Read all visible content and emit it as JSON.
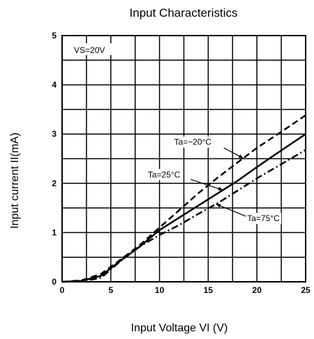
{
  "chart_data": {
    "type": "line",
    "title": "Input Characteristics",
    "xlabel": "Input Voltage    VI (V)",
    "ylabel": "Input current    II(mA)",
    "xlim": [
      0,
      25
    ],
    "ylim": [
      0,
      5
    ],
    "xticks": [
      "0",
      "5",
      "10",
      "15",
      "20",
      "25"
    ],
    "yticks": [
      "0",
      "1",
      "2",
      "3",
      "4",
      "5"
    ],
    "grid": true,
    "condition": "VS=20V",
    "series": [
      {
        "name": "Ta=−20°C",
        "style": "dashed",
        "x": [
          0,
          2,
          4,
          6,
          8,
          10,
          12,
          14,
          16,
          18,
          20,
          22,
          25
        ],
        "y": [
          0,
          0.03,
          0.16,
          0.45,
          0.75,
          1.1,
          1.45,
          1.8,
          2.12,
          2.42,
          2.72,
          2.98,
          3.38
        ]
      },
      {
        "name": "Ta=25°C",
        "style": "solid",
        "x": [
          0,
          2,
          4,
          6,
          8,
          10,
          12,
          14,
          16,
          18,
          20,
          22,
          25
        ],
        "y": [
          0,
          0.02,
          0.12,
          0.43,
          0.72,
          1.05,
          1.3,
          1.55,
          1.8,
          2.05,
          2.33,
          2.6,
          3.0
        ]
      },
      {
        "name": "Ta=75°C",
        "style": "dashdot",
        "x": [
          0,
          2,
          4,
          6,
          8,
          10,
          12,
          14,
          16,
          18,
          20,
          22,
          25
        ],
        "y": [
          0,
          0.01,
          0.08,
          0.42,
          0.72,
          0.95,
          1.15,
          1.38,
          1.6,
          1.85,
          2.1,
          2.33,
          2.68
        ]
      }
    ],
    "annotations": [
      {
        "text": "Ta=−20°C",
        "series": 0
      },
      {
        "text": "Ta=25°C",
        "series": 1
      },
      {
        "text": "Ta=75°C",
        "series": 2
      }
    ]
  }
}
